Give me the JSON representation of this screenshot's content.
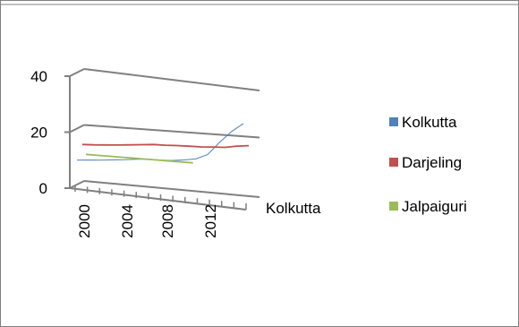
{
  "chart_data": {
    "type": "line",
    "style": "3d-line",
    "x": [
      "2000",
      "2001",
      "2002",
      "2003",
      "2004",
      "2005",
      "2006",
      "2007",
      "2008",
      "2009",
      "2010",
      "2011",
      "2012",
      "2013",
      "2014"
    ],
    "x_tick_labels": [
      "2000",
      "2004",
      "2008",
      "2012"
    ],
    "depth_axis_label": "Kolkutta",
    "y_tick_labels": [
      "0",
      "20",
      "40"
    ],
    "ylim": [
      0,
      40
    ],
    "grid": true,
    "legend_position": "right",
    "series": [
      {
        "name": "Kolkutta",
        "color": "#4f81bd",
        "values": [
          10,
          10.2,
          10.3,
          10.5,
          10.7,
          11,
          11.2,
          11,
          11,
          11.3,
          11.8,
          13.5,
          18,
          22,
          25
        ]
      },
      {
        "name": "Darjeling",
        "color": "#c0504d",
        "values": [
          14,
          14,
          14.1,
          14.2,
          14.4,
          14.6,
          14.8,
          14.7,
          14.7,
          14.6,
          14.5,
          14.6,
          14.6,
          15.2,
          15.5
        ]
      },
      {
        "name": "Jalpaiguri",
        "color": "#9bbb59",
        "values": [
          9.5,
          9.3,
          9.1,
          8.9,
          8.7,
          8.5,
          8.3,
          8.1,
          7.9,
          7.7,
          null,
          null,
          null,
          null,
          null
        ]
      }
    ]
  }
}
